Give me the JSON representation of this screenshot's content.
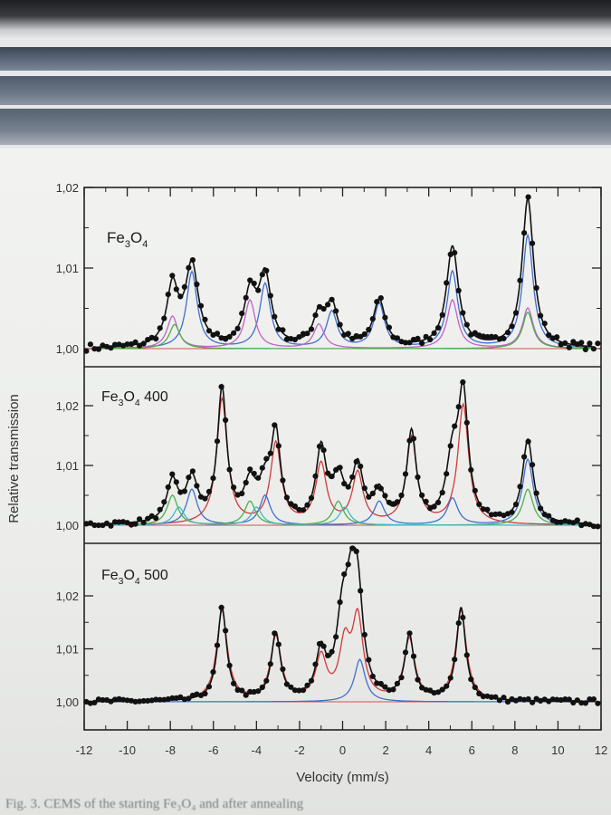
{
  "figure_caption": "Fig. 3. CEMS of the starting Fe₃O₄ and after annealing",
  "colors": {
    "data_points": "#111111",
    "envelope": "#111111",
    "baseline": "#d05050",
    "component_blue": "#3f6fd0",
    "component_magenta": "#c062c8",
    "component_red": "#d23a3a",
    "component_green": "#49b04a",
    "component_cyan": "#40b9c4"
  },
  "chart_data": {
    "type": "scatter",
    "xlabel": "Velocity (mm/s)",
    "ylabel": "Relative transmission",
    "xlim": [
      -12,
      12
    ],
    "x_ticks": [
      -12,
      -10,
      -8,
      -6,
      -4,
      -2,
      0,
      2,
      4,
      6,
      8,
      10,
      12
    ],
    "x_tick_labels": [
      "-12",
      "-10",
      "-8",
      "-6",
      "-4",
      "-2",
      "0",
      "2",
      "4",
      "6",
      "8",
      "10",
      "12"
    ],
    "panels": [
      {
        "label_text": "Fe",
        "label_sub1": "3",
        "label_mid": "O",
        "label_sub2": "4",
        "label_suffix": "",
        "ylim": [
          1.0,
          1.02
        ],
        "y_ticks": [
          1.0,
          1.01,
          1.02
        ],
        "y_tick_labels": [
          "1,00",
          "1,01",
          "1,02"
        ],
        "peaks": [
          {
            "x": -7.9,
            "h": 0.0073,
            "w": 0.32
          },
          {
            "x": -7.0,
            "h": 0.01,
            "w": 0.36
          },
          {
            "x": -4.3,
            "h": 0.0063,
            "w": 0.34
          },
          {
            "x": -3.6,
            "h": 0.0085,
            "w": 0.34
          },
          {
            "x": -1.1,
            "h": 0.0038,
            "w": 0.32
          },
          {
            "x": -0.5,
            "h": 0.005,
            "w": 0.32
          },
          {
            "x": 1.7,
            "h": 0.0058,
            "w": 0.34
          },
          {
            "x": 5.1,
            "h": 0.0125,
            "w": 0.34
          },
          {
            "x": 8.6,
            "h": 0.0185,
            "w": 0.32
          }
        ],
        "components": [
          {
            "color": "component_blue",
            "peaks": [
              [
                -7.0,
                0.0095
              ],
              [
                -3.6,
                0.008
              ],
              [
                -0.5,
                0.0045
              ],
              [
                1.7,
                0.0055
              ],
              [
                5.1,
                0.0095
              ],
              [
                8.6,
                0.014
              ]
            ]
          },
          {
            "color": "component_magenta",
            "peaks": [
              [
                -7.9,
                0.004
              ],
              [
                -4.3,
                0.006
              ],
              [
                -1.1,
                0.003
              ],
              [
                5.1,
                0.006
              ],
              [
                8.6,
                0.005
              ]
            ]
          },
          {
            "color": "component_green",
            "peaks": [
              [
                -7.8,
                0.003
              ],
              [
                8.6,
                0.0045
              ]
            ]
          }
        ]
      },
      {
        "label_text": "Fe",
        "label_sub1": "3",
        "label_mid": "O",
        "label_sub2": "4",
        "label_suffix": " 400",
        "ylim": [
          1.0,
          1.02
        ],
        "y_ticks": [
          1.0,
          1.01,
          1.02
        ],
        "y_tick_labels": [
          "1,00",
          "1,01",
          "1,02"
        ],
        "peaks": [
          {
            "x": -7.9,
            "h": 0.0068,
            "w": 0.32
          },
          {
            "x": -7.0,
            "h": 0.007,
            "w": 0.34
          },
          {
            "x": -5.6,
            "h": 0.022,
            "w": 0.26
          },
          {
            "x": -4.3,
            "h": 0.006,
            "w": 0.34
          },
          {
            "x": -3.6,
            "h": 0.0055,
            "w": 0.34
          },
          {
            "x": -3.1,
            "h": 0.014,
            "w": 0.26
          },
          {
            "x": -1.0,
            "h": 0.012,
            "w": 0.28
          },
          {
            "x": -0.2,
            "h": 0.007,
            "w": 0.34
          },
          {
            "x": 0.7,
            "h": 0.009,
            "w": 0.3
          },
          {
            "x": 1.7,
            "h": 0.005,
            "w": 0.32
          },
          {
            "x": 3.2,
            "h": 0.015,
            "w": 0.26
          },
          {
            "x": 5.1,
            "h": 0.01,
            "w": 0.34
          },
          {
            "x": 5.6,
            "h": 0.0205,
            "w": 0.28
          },
          {
            "x": 8.6,
            "h": 0.014,
            "w": 0.3
          }
        ],
        "components": [
          {
            "color": "component_red",
            "peaks": [
              [
                -5.6,
                0.021
              ],
              [
                -3.1,
                0.0135
              ],
              [
                -1.0,
                0.01
              ],
              [
                0.7,
                0.0085
              ],
              [
                3.2,
                0.0145
              ],
              [
                5.6,
                0.02
              ]
            ]
          },
          {
            "color": "component_blue",
            "peaks": [
              [
                -7.0,
                0.006
              ],
              [
                -3.6,
                0.005
              ],
              [
                1.7,
                0.004
              ],
              [
                5.1,
                0.0045
              ],
              [
                8.6,
                0.011
              ]
            ]
          },
          {
            "color": "component_green",
            "peaks": [
              [
                -7.9,
                0.005
              ],
              [
                -4.3,
                0.004
              ],
              [
                -0.2,
                0.004
              ],
              [
                8.6,
                0.006
              ]
            ]
          },
          {
            "color": "component_cyan",
            "peaks": [
              [
                -7.6,
                0.003
              ],
              [
                -4.0,
                0.003
              ],
              [
                0.1,
                0.003
              ]
            ]
          }
        ]
      },
      {
        "label_text": "Fe",
        "label_sub1": "3",
        "label_mid": "O",
        "label_sub2": "4",
        "label_suffix": " 500",
        "ylim": [
          1.0,
          1.02
        ],
        "y_ticks": [
          1.0,
          1.01,
          1.02
        ],
        "y_tick_labels": [
          "1,00",
          "1,01",
          "1,02"
        ],
        "peaks": [
          {
            "x": -5.6,
            "h": 0.0175,
            "w": 0.26
          },
          {
            "x": -3.1,
            "h": 0.0125,
            "w": 0.26
          },
          {
            "x": -1.0,
            "h": 0.0085,
            "w": 0.28
          },
          {
            "x": 0.0,
            "h": 0.014,
            "w": 0.34
          },
          {
            "x": 0.4,
            "h": 0.014,
            "w": 0.3
          },
          {
            "x": 0.7,
            "h": 0.017,
            "w": 0.3
          },
          {
            "x": 3.1,
            "h": 0.012,
            "w": 0.26
          },
          {
            "x": 5.5,
            "h": 0.0175,
            "w": 0.26
          }
        ],
        "components": [
          {
            "color": "component_red",
            "peaks": [
              [
                -5.6,
                0.017
              ],
              [
                -3.1,
                0.012
              ],
              [
                -1.0,
                0.008
              ],
              [
                0.1,
                0.01
              ],
              [
                0.7,
                0.015
              ],
              [
                3.1,
                0.0115
              ],
              [
                5.5,
                0.017
              ]
            ]
          },
          {
            "color": "component_blue",
            "peaks": [
              [
                0.8,
                0.008
              ]
            ]
          }
        ]
      }
    ]
  }
}
